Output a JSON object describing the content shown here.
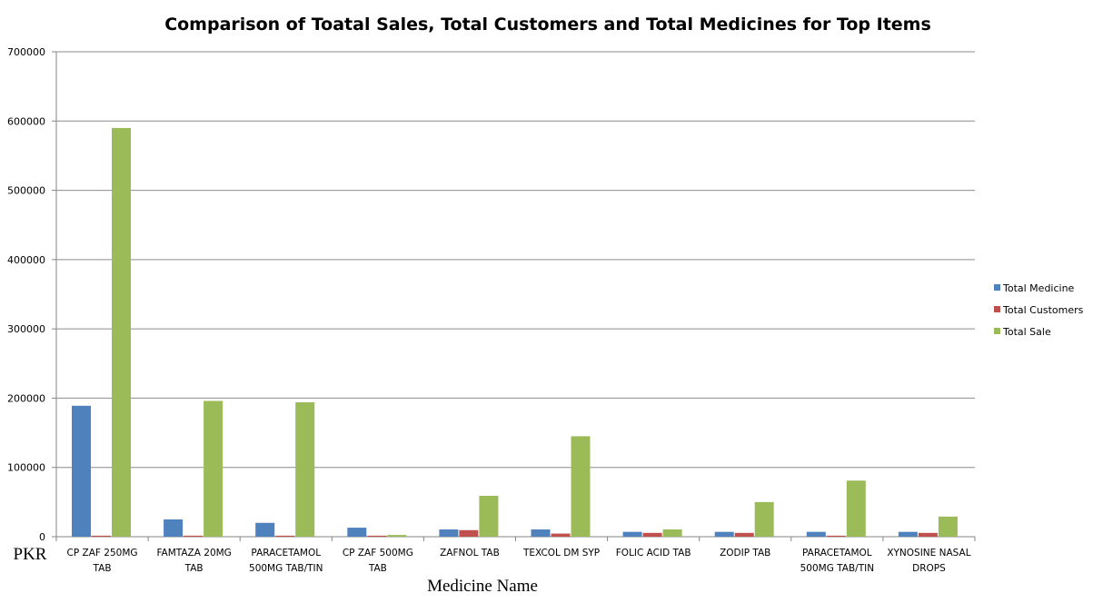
{
  "chart_data": {
    "type": "bar",
    "title": "Comparison of Toatal Sales, Total Customers and Total Medicines for Top Items",
    "xlabel": "Medicine Name",
    "ylabel": "PKR",
    "ylim": [
      0,
      700000
    ],
    "yticks": [
      "0",
      "100000",
      "200000",
      "300000",
      "400000",
      "500000",
      "600000",
      "700000"
    ],
    "grid": true,
    "legend_position": "right",
    "categories": [
      [
        "CP ZAF 250MG",
        "TAB"
      ],
      [
        "FAMTAZA 20MG",
        "TAB"
      ],
      [
        "PARACETAMOL",
        "500MG TAB/TIN"
      ],
      [
        "CP ZAF 500MG",
        "TAB"
      ],
      [
        "ZAFNOL TAB"
      ],
      [
        "TEXCOL DM SYP"
      ],
      [
        "FOLIC ACID TAB"
      ],
      [
        "ZODIP TAB"
      ],
      [
        "PARACETAMOL",
        "500MG TAB/TIN"
      ],
      [
        "XYNOSINE NASAL",
        "DROPS"
      ]
    ],
    "series": [
      {
        "name": "Total Medicine",
        "color": "#4F81BD",
        "values": [
          189000,
          25000,
          20000,
          13000,
          10500,
          10500,
          7000,
          7000,
          7000,
          7000
        ]
      },
      {
        "name": "Total Customers",
        "color": "#C0504D",
        "values": [
          1500,
          1500,
          1500,
          1500,
          9500,
          4500,
          5500,
          5500,
          1500,
          5500
        ]
      },
      {
        "name": "Total Sale",
        "color": "#9BBB59",
        "values": [
          590000,
          196000,
          194000,
          2500,
          59000,
          145000,
          10500,
          50000,
          81000,
          29000
        ]
      }
    ]
  }
}
